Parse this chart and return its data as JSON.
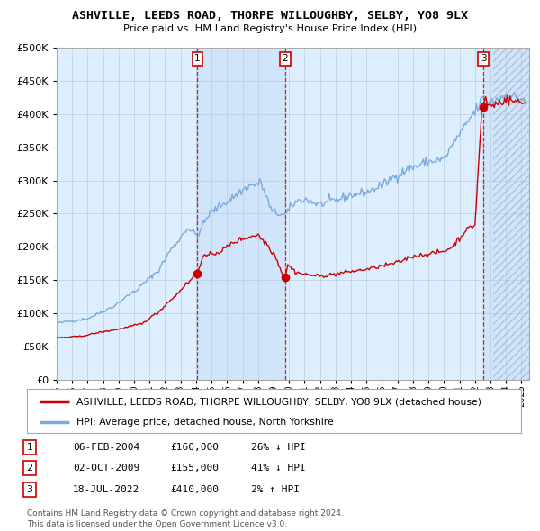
{
  "title": "ASHVILLE, LEEDS ROAD, THORPE WILLOUGHBY, SELBY, YO8 9LX",
  "subtitle": "Price paid vs. HM Land Registry's House Price Index (HPI)",
  "ylim": [
    0,
    500000
  ],
  "yticks": [
    0,
    50000,
    100000,
    150000,
    200000,
    250000,
    300000,
    350000,
    400000,
    450000,
    500000
  ],
  "xlim_start": 1995.0,
  "xlim_end": 2025.5,
  "hpi_color": "#7aaadd",
  "price_color": "#cc0000",
  "bg_color": "#ffffff",
  "plot_bg_color": "#ddeeff",
  "grid_color": "#bbccdd",
  "sale1_x": 2004.09,
  "sale1_y": 160000,
  "sale1_label": "1",
  "sale2_x": 2009.75,
  "sale2_y": 155000,
  "sale2_label": "2",
  "sale3_x": 2022.54,
  "sale3_y": 410000,
  "sale3_label": "3",
  "legend_entries": [
    "ASHVILLE, LEEDS ROAD, THORPE WILLOUGHBY, SELBY, YO8 9LX (detached house)",
    "HPI: Average price, detached house, North Yorkshire"
  ],
  "table_rows": [
    {
      "num": "1",
      "date": "06-FEB-2004",
      "price": "£160,000",
      "pct": "26% ↓ HPI"
    },
    {
      "num": "2",
      "date": "02-OCT-2009",
      "price": "£155,000",
      "pct": "41% ↓ HPI"
    },
    {
      "num": "3",
      "date": "18-JUL-2022",
      "price": "£410,000",
      "pct": "2% ↑ HPI"
    }
  ],
  "footer": "Contains HM Land Registry data © Crown copyright and database right 2024.\nThis data is licensed under the Open Government Licence v3.0."
}
